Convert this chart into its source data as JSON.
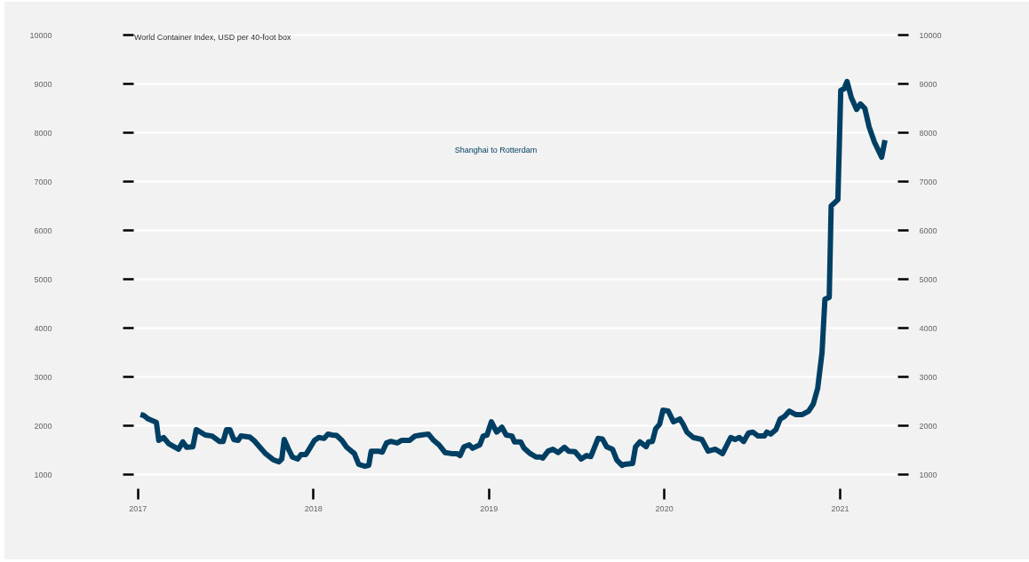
{
  "chart_data": {
    "type": "line",
    "title": "World Container Index, USD per 40-foot box",
    "x": [
      "2017-01-07",
      "2017-01-14",
      "2017-01-23",
      "2017-02-09",
      "2017-02-14",
      "2017-02-24",
      "2017-03-07",
      "2017-03-27",
      "2017-04-05",
      "2017-04-13",
      "2017-04-26",
      "2017-05-03",
      "2017-05-22",
      "2017-06-05",
      "2017-06-20",
      "2017-06-28",
      "2017-07-05",
      "2017-07-12",
      "2017-07-20",
      "2017-07-29",
      "2017-08-04",
      "2017-08-22",
      "2017-08-31",
      "2017-09-08",
      "2017-09-24",
      "2017-10-11",
      "2017-10-22",
      "2017-10-28",
      "2017-11-02",
      "2017-11-11",
      "2017-11-19",
      "2017-11-30",
      "2017-12-07",
      "2017-12-17",
      "2017-12-24",
      "2018-01-04",
      "2018-01-13",
      "2018-01-24",
      "2018-02-01",
      "2018-02-10",
      "2018-02-19",
      "2018-03-02",
      "2018-03-12",
      "2018-03-28",
      "2018-04-06",
      "2018-04-19",
      "2018-04-27",
      "2018-05-02",
      "2018-05-17",
      "2018-05-25",
      "2018-06-03",
      "2018-06-12",
      "2018-06-25",
      "2018-07-04",
      "2018-07-21",
      "2018-08-01",
      "2018-08-14",
      "2018-08-29",
      "2018-09-09",
      "2018-09-20",
      "2018-10-03",
      "2018-10-16",
      "2018-10-27",
      "2018-11-03",
      "2018-11-11",
      "2018-11-22",
      "2018-11-29",
      "2018-12-14",
      "2018-12-21",
      "2018-12-29",
      "2019-01-07",
      "2019-01-18",
      "2019-01-29",
      "2019-02-07",
      "2019-02-19",
      "2019-02-24",
      "2019-03-09",
      "2019-03-16",
      "2019-03-29",
      "2019-04-10",
      "2019-04-19",
      "2019-04-24",
      "2019-05-05",
      "2019-05-15",
      "2019-05-26",
      "2019-06-08",
      "2019-06-17",
      "2019-06-30",
      "2019-07-13",
      "2019-07-24",
      "2019-08-02",
      "2019-08-17",
      "2019-08-26",
      "2019-09-04",
      "2019-09-16",
      "2019-09-25",
      "2019-10-06",
      "2019-10-11",
      "2019-10-28",
      "2019-11-03",
      "2019-11-12",
      "2019-11-25",
      "2019-11-30",
      "2019-12-08",
      "2019-12-15",
      "2019-12-23",
      "2019-12-30",
      "2020-01-10",
      "2020-01-21",
      "2020-02-03",
      "2020-02-09",
      "2020-02-18",
      "2020-03-02",
      "2020-03-20",
      "2020-04-02",
      "2020-04-17",
      "2020-05-02",
      "2020-05-19",
      "2020-05-28",
      "2020-06-06",
      "2020-06-15",
      "2020-06-25",
      "2020-07-04",
      "2020-07-15",
      "2020-07-28",
      "2020-08-02",
      "2020-08-10",
      "2020-08-21",
      "2020-08-30",
      "2020-09-08",
      "2020-09-18",
      "2020-10-01",
      "2020-10-15",
      "2020-10-28",
      "2020-11-07",
      "2020-11-16",
      "2020-11-25",
      "2020-12-01",
      "2020-12-10",
      "2020-12-14",
      "2020-12-28",
      "2021-01-03",
      "2021-01-10",
      "2021-01-16",
      "2021-01-25",
      "2021-02-05",
      "2021-02-13",
      "2021-02-22",
      "2021-03-03",
      "2021-03-14",
      "2021-03-29",
      "2021-04-05"
    ],
    "series": [
      {
        "name": "Shanghai to Rotterdam",
        "color": "#003f63",
        "values": [
          2220,
          2200,
          2130,
          2060,
          1690,
          1750,
          1620,
          1510,
          1660,
          1550,
          1560,
          1910,
          1800,
          1780,
          1670,
          1670,
          1910,
          1910,
          1710,
          1690,
          1780,
          1760,
          1690,
          1600,
          1420,
          1290,
          1250,
          1310,
          1710,
          1510,
          1350,
          1310,
          1400,
          1400,
          1510,
          1690,
          1750,
          1730,
          1820,
          1800,
          1790,
          1690,
          1550,
          1420,
          1200,
          1160,
          1180,
          1470,
          1470,
          1450,
          1640,
          1670,
          1640,
          1690,
          1690,
          1780,
          1800,
          1820,
          1690,
          1600,
          1440,
          1420,
          1420,
          1380,
          1560,
          1600,
          1530,
          1600,
          1780,
          1800,
          2070,
          1860,
          1960,
          1800,
          1780,
          1660,
          1660,
          1530,
          1420,
          1350,
          1350,
          1330,
          1470,
          1510,
          1440,
          1550,
          1470,
          1460,
          1310,
          1380,
          1360,
          1730,
          1720,
          1560,
          1510,
          1290,
          1180,
          1200,
          1220,
          1560,
          1660,
          1560,
          1660,
          1670,
          1930,
          2020,
          2310,
          2290,
          2070,
          2130,
          2040,
          1860,
          1750,
          1710,
          1470,
          1510,
          1420,
          1750,
          1710,
          1750,
          1670,
          1840,
          1860,
          1780,
          1780,
          1860,
          1820,
          1910,
          2130,
          2180,
          2290,
          2220,
          2220,
          2290,
          2440,
          2760,
          3490,
          4580,
          4620,
          6490,
          6620,
          8860,
          8890,
          9040,
          8710,
          8470,
          8580,
          8490,
          8110,
          7800,
          7490,
          7840
        ]
      }
    ],
    "xlim": [
      "2016-12-23",
      "2021-05-01"
    ],
    "xticks": [
      {
        "value": "2017-01-01",
        "label": "2017"
      },
      {
        "value": "2018-01-01",
        "label": "2018"
      },
      {
        "value": "2019-01-01",
        "label": "2019"
      },
      {
        "value": "2020-01-01",
        "label": "2020"
      },
      {
        "value": "2021-01-01",
        "label": "2021"
      }
    ],
    "ylim": [
      1000,
      10000
    ],
    "yticks": [
      1000,
      2000,
      3000,
      4000,
      5000,
      6000,
      7000,
      8000,
      9000,
      10000
    ],
    "y2lim": [
      1000,
      10000
    ],
    "y2ticks": [
      1000,
      2000,
      3000,
      4000,
      5000,
      6000,
      7000,
      8000,
      9000,
      10000
    ],
    "grid": "y",
    "line_style": "solid"
  }
}
